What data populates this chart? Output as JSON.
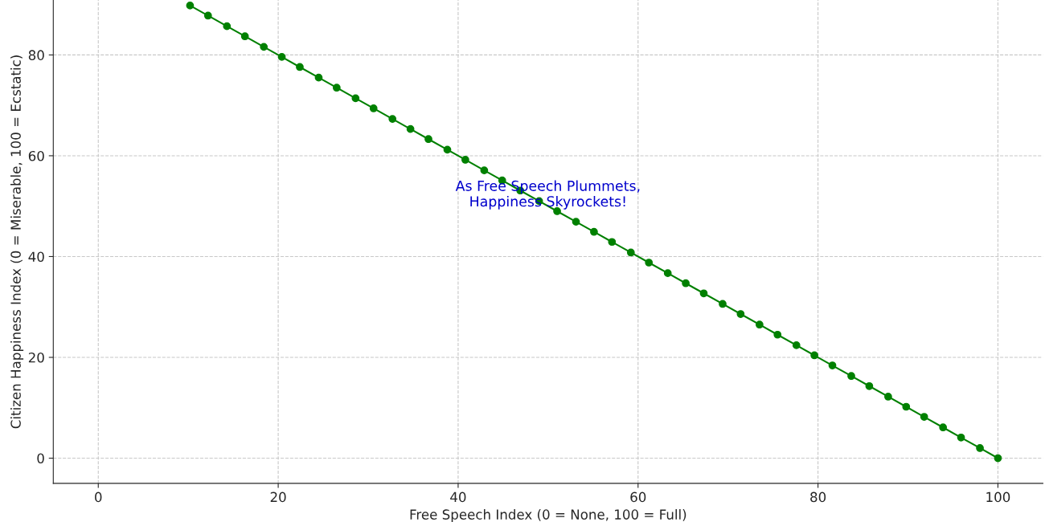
{
  "chart_data": {
    "type": "line",
    "xlabel": "Free Speech Index (0 = None, 100 = Full)",
    "ylabel": "Citizen Happiness Index (0 = Miserable, 100 = Ecstatic)",
    "x": [
      10.2,
      12.2,
      14.3,
      16.3,
      18.4,
      20.4,
      22.4,
      24.5,
      26.5,
      28.6,
      30.6,
      32.7,
      34.7,
      36.7,
      38.8,
      40.8,
      42.9,
      44.9,
      46.9,
      49.0,
      51.0,
      53.1,
      55.1,
      57.1,
      59.2,
      61.2,
      63.3,
      65.3,
      67.3,
      69.4,
      71.4,
      73.5,
      75.5,
      77.6,
      79.6,
      81.6,
      83.7,
      85.7,
      87.8,
      89.8,
      91.8,
      93.9,
      95.9,
      98.0,
      100
    ],
    "series": [
      {
        "color": "#008000",
        "values": [
          89.8,
          87.8,
          85.7,
          83.7,
          81.6,
          79.6,
          77.6,
          75.5,
          73.5,
          71.4,
          69.4,
          67.3,
          65.3,
          63.3,
          61.2,
          59.2,
          57.1,
          55.1,
          53.1,
          51.0,
          49.0,
          46.9,
          44.9,
          42.9,
          40.8,
          38.8,
          36.7,
          34.7,
          32.7,
          30.6,
          28.6,
          26.5,
          24.5,
          22.4,
          20.4,
          18.4,
          16.3,
          14.3,
          12.2,
          10.2,
          8.2,
          6.1,
          4.1,
          2.0,
          0
        ]
      }
    ],
    "xlim": [
      -5,
      105
    ],
    "ylim": [
      -5,
      90.9
    ],
    "xticks": [
      0,
      20,
      40,
      60,
      80,
      100
    ],
    "yticks": [
      0,
      20,
      40,
      60,
      80
    ],
    "annotations": [
      "As Free Speech Plummets,\nHappiness Skyrockets!"
    ],
    "grid": true,
    "marker": "circle",
    "line_style": "solid",
    "legend": false
  }
}
